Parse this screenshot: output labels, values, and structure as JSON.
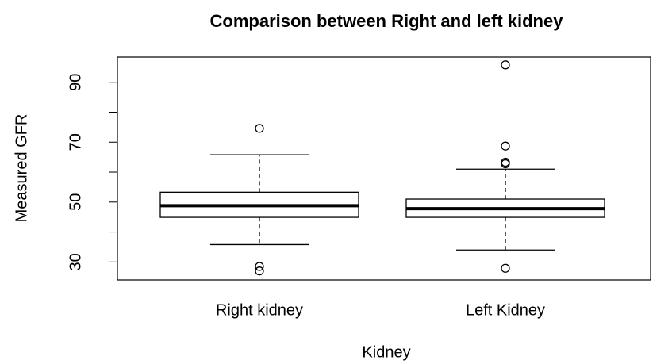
{
  "chart_data": {
    "type": "boxplot",
    "title": "Comparison between Right and left kidney",
    "x_label": "Kidney",
    "y_label": "Measured GFR",
    "categories": [
      "Right kidney",
      "Left Kidney"
    ],
    "boxes": [
      {
        "whisker_low": 35.8,
        "q1": 44.9,
        "median": 48.8,
        "q3": 53.3,
        "whisker_high": 65.8,
        "outliers": [
          74.6,
          28.5,
          27
        ]
      },
      {
        "whisker_low": 34,
        "q1": 44.9,
        "median": 47.8,
        "q3": 51,
        "whisker_high": 61,
        "outliers": [
          95.8,
          68.7,
          63.3,
          62.8,
          27.9
        ]
      }
    ],
    "color": "#000000",
    "ylim": [
      24,
      98.4
    ],
    "yticks": [
      30,
      50,
      70,
      90
    ],
    "yminorticks": [
      40,
      60,
      80
    ]
  }
}
